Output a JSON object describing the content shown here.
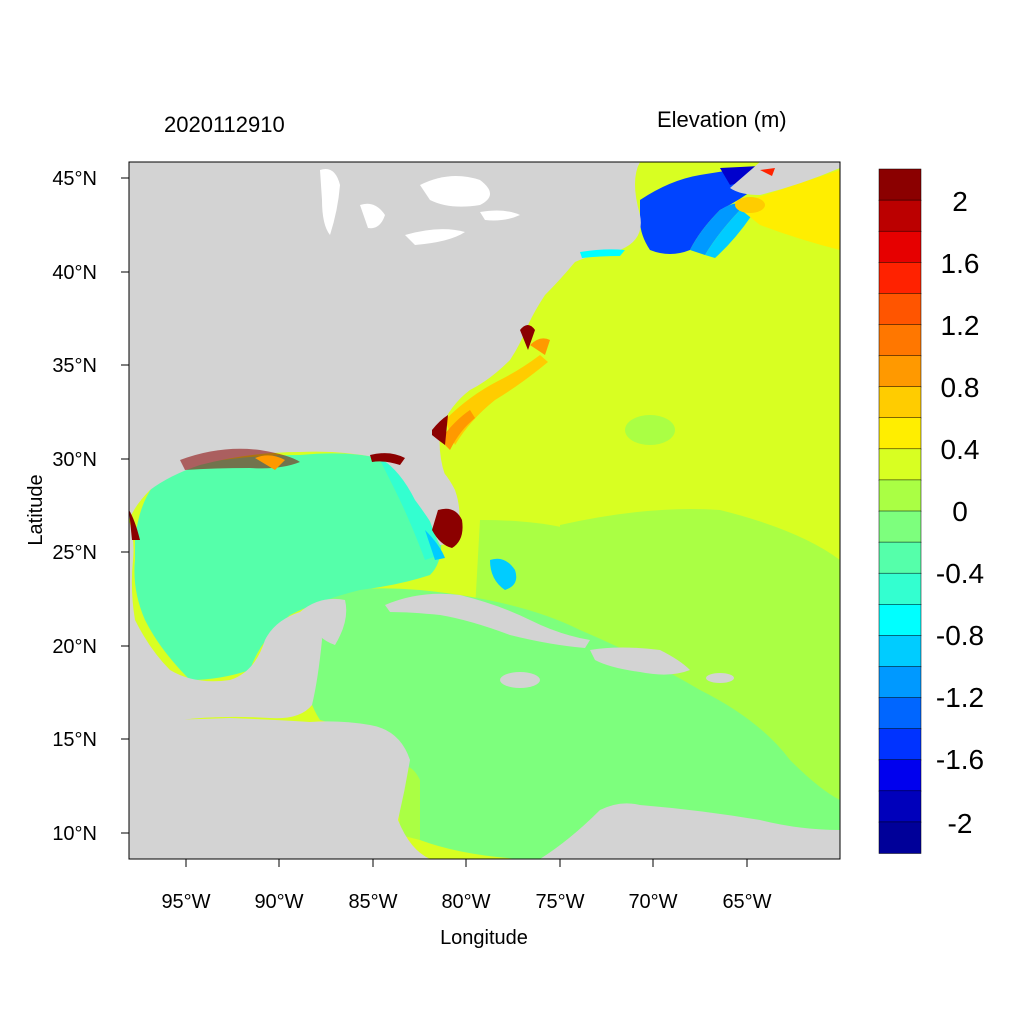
{
  "header": {
    "timestamp": "2020112910",
    "variable_title": "Elevation (m)"
  },
  "axes": {
    "xlabel": "Longitude",
    "ylabel": "Latitude",
    "x_ticks": [
      "95°W",
      "90°W",
      "85°W",
      "80°W",
      "75°W",
      "70°W",
      "65°W"
    ],
    "y_ticks": [
      "45°N",
      "40°N",
      "35°N",
      "30°N",
      "25°N",
      "20°N",
      "15°N",
      "10°N"
    ]
  },
  "colorbar": {
    "labels": [
      "2",
      "1.6",
      "1.2",
      "0.8",
      "0.4",
      "0",
      "-0.4",
      "-0.8",
      "-1.2",
      "-1.6",
      "-2"
    ],
    "colors": [
      "#8b0000",
      "#bb0000",
      "#e60000",
      "#ff2200",
      "#ff5500",
      "#ff7700",
      "#ff9900",
      "#ffcc00",
      "#ffee00",
      "#d8ff22",
      "#aaff44",
      "#7dff7d",
      "#55ffaa",
      "#33ffd0",
      "#00ffff",
      "#00ccff",
      "#0099ff",
      "#0066ff",
      "#0033ff",
      "#0000ee",
      "#0000bb",
      "#000099"
    ]
  },
  "map_colors": {
    "land": "#d3d3d3",
    "ocean_positive": "#d8ff22",
    "ocean_low_positive": "#aaff44",
    "ocean_zero": "#7dff7d",
    "gulf": "#55ffaa",
    "surge_high": "#8b0000",
    "nor_east_low": "#0044ff"
  }
}
